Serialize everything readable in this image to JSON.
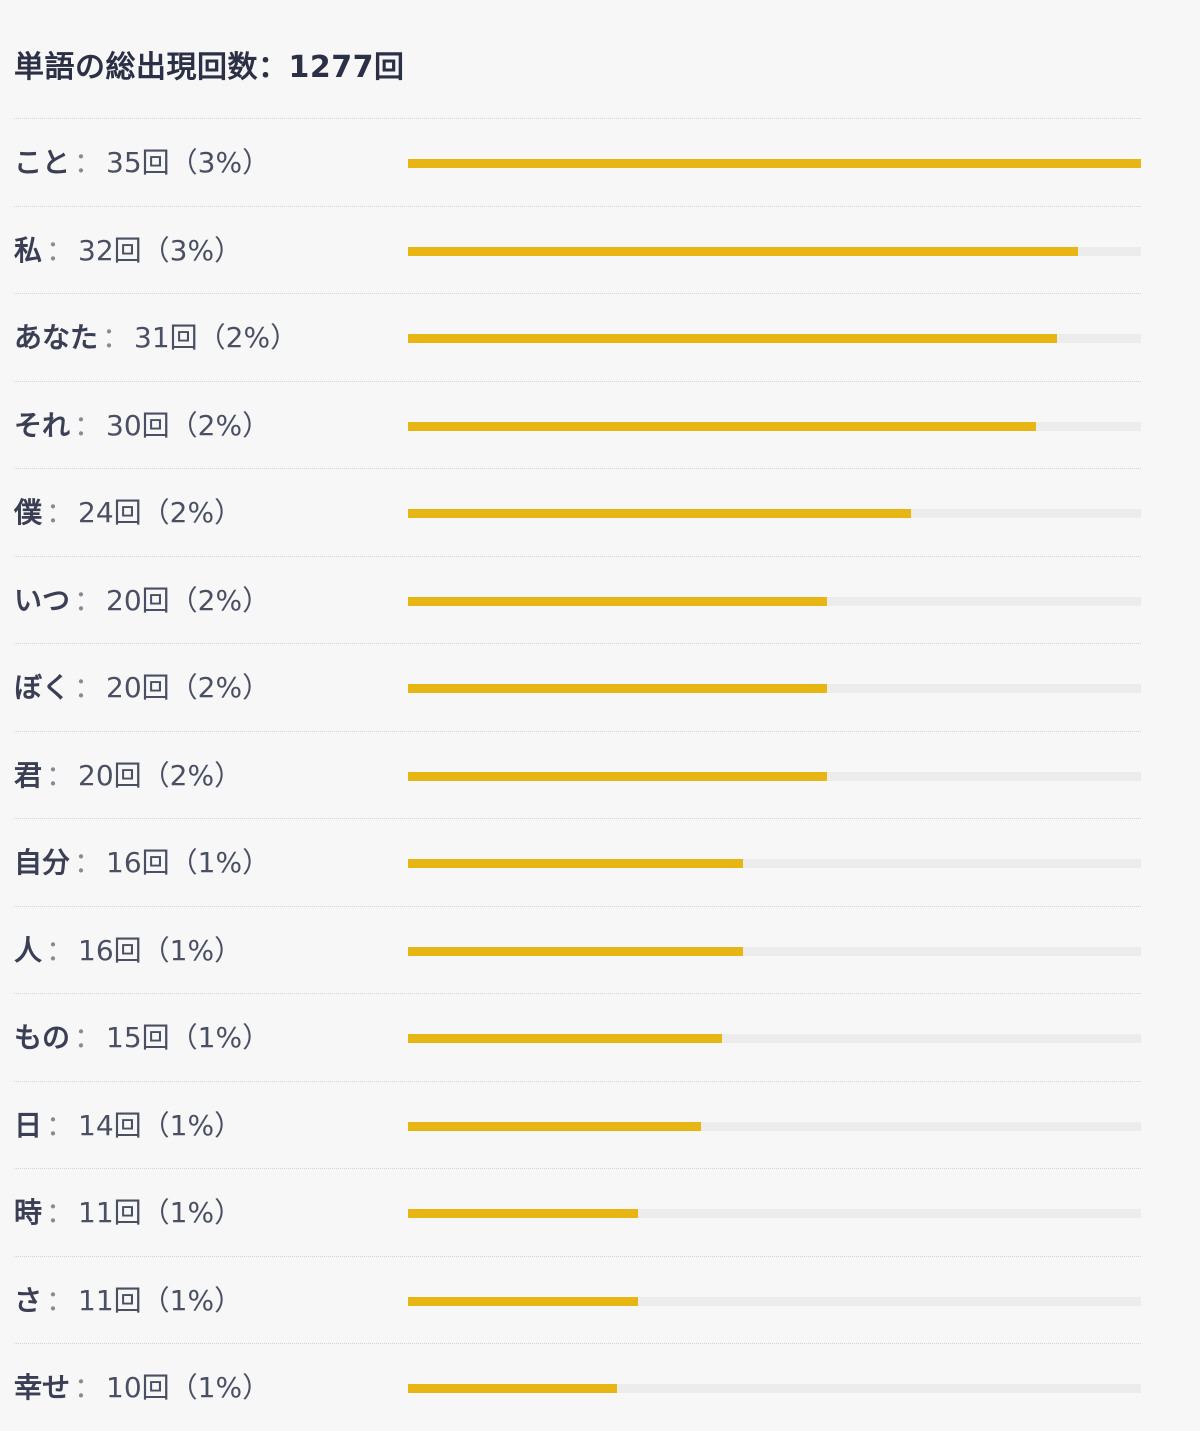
{
  "chart_data": {
    "type": "bar",
    "title": "単語の総出現回数：1277回",
    "separator": "：",
    "accent_color": "#e8b614",
    "track_color": "#ececec",
    "rows": [
      {
        "word": "こと",
        "stat": "35回（3%）",
        "value": 35
      },
      {
        "word": "私",
        "stat": "32回（3%）",
        "value": 32
      },
      {
        "word": "あなた",
        "stat": "31回（2%）",
        "value": 31
      },
      {
        "word": "それ",
        "stat": "30回（2%）",
        "value": 30
      },
      {
        "word": "僕",
        "stat": "24回（2%）",
        "value": 24
      },
      {
        "word": "いつ",
        "stat": "20回（2%）",
        "value": 20
      },
      {
        "word": "ぼく",
        "stat": "20回（2%）",
        "value": 20
      },
      {
        "word": "君",
        "stat": "20回（2%）",
        "value": 20
      },
      {
        "word": "自分",
        "stat": "16回（1%）",
        "value": 16
      },
      {
        "word": "人",
        "stat": "16回（1%）",
        "value": 16
      },
      {
        "word": "もの",
        "stat": "15回（1%）",
        "value": 15
      },
      {
        "word": "日",
        "stat": "14回（1%）",
        "value": 14
      },
      {
        "word": "時",
        "stat": "11回（1%）",
        "value": 11
      },
      {
        "word": "さ",
        "stat": "11回（1%）",
        "value": 11
      },
      {
        "word": "幸せ",
        "stat": "10回（1%）",
        "value": 10
      }
    ]
  }
}
